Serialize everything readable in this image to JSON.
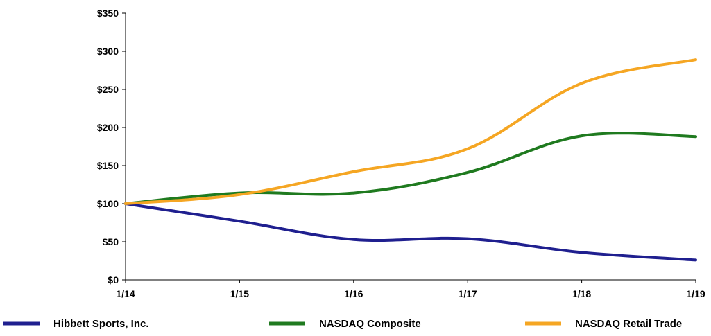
{
  "chart_data": {
    "type": "line",
    "title": "",
    "xlabel": "",
    "ylabel": "",
    "x": [
      "1/14",
      "1/15",
      "1/16",
      "1/17",
      "1/18",
      "1/19"
    ],
    "ylim": [
      0,
      350
    ],
    "yticks": [
      {
        "value": 0,
        "label": "$0"
      },
      {
        "value": 50,
        "label": "$50"
      },
      {
        "value": 100,
        "label": "$100"
      },
      {
        "value": 150,
        "label": "$150"
      },
      {
        "value": 200,
        "label": "$200"
      },
      {
        "value": 250,
        "label": "$250"
      },
      {
        "value": 300,
        "label": "$300"
      },
      {
        "value": 350,
        "label": "$350"
      }
    ],
    "grid": false,
    "legend_position": "bottom",
    "series": [
      {
        "name": "Hibbett Sports, Inc.",
        "color": "#1f1f8f",
        "values": [
          100,
          77,
          53,
          54,
          36,
          26
        ]
      },
      {
        "name": "NASDAQ Composite",
        "color": "#1f7a1f",
        "values": [
          100,
          114,
          114,
          141,
          189,
          188
        ]
      },
      {
        "name": "NASDAQ Retail Trade",
        "color": "#f5a623",
        "values": [
          100,
          112,
          142,
          172,
          258,
          289
        ]
      }
    ]
  }
}
